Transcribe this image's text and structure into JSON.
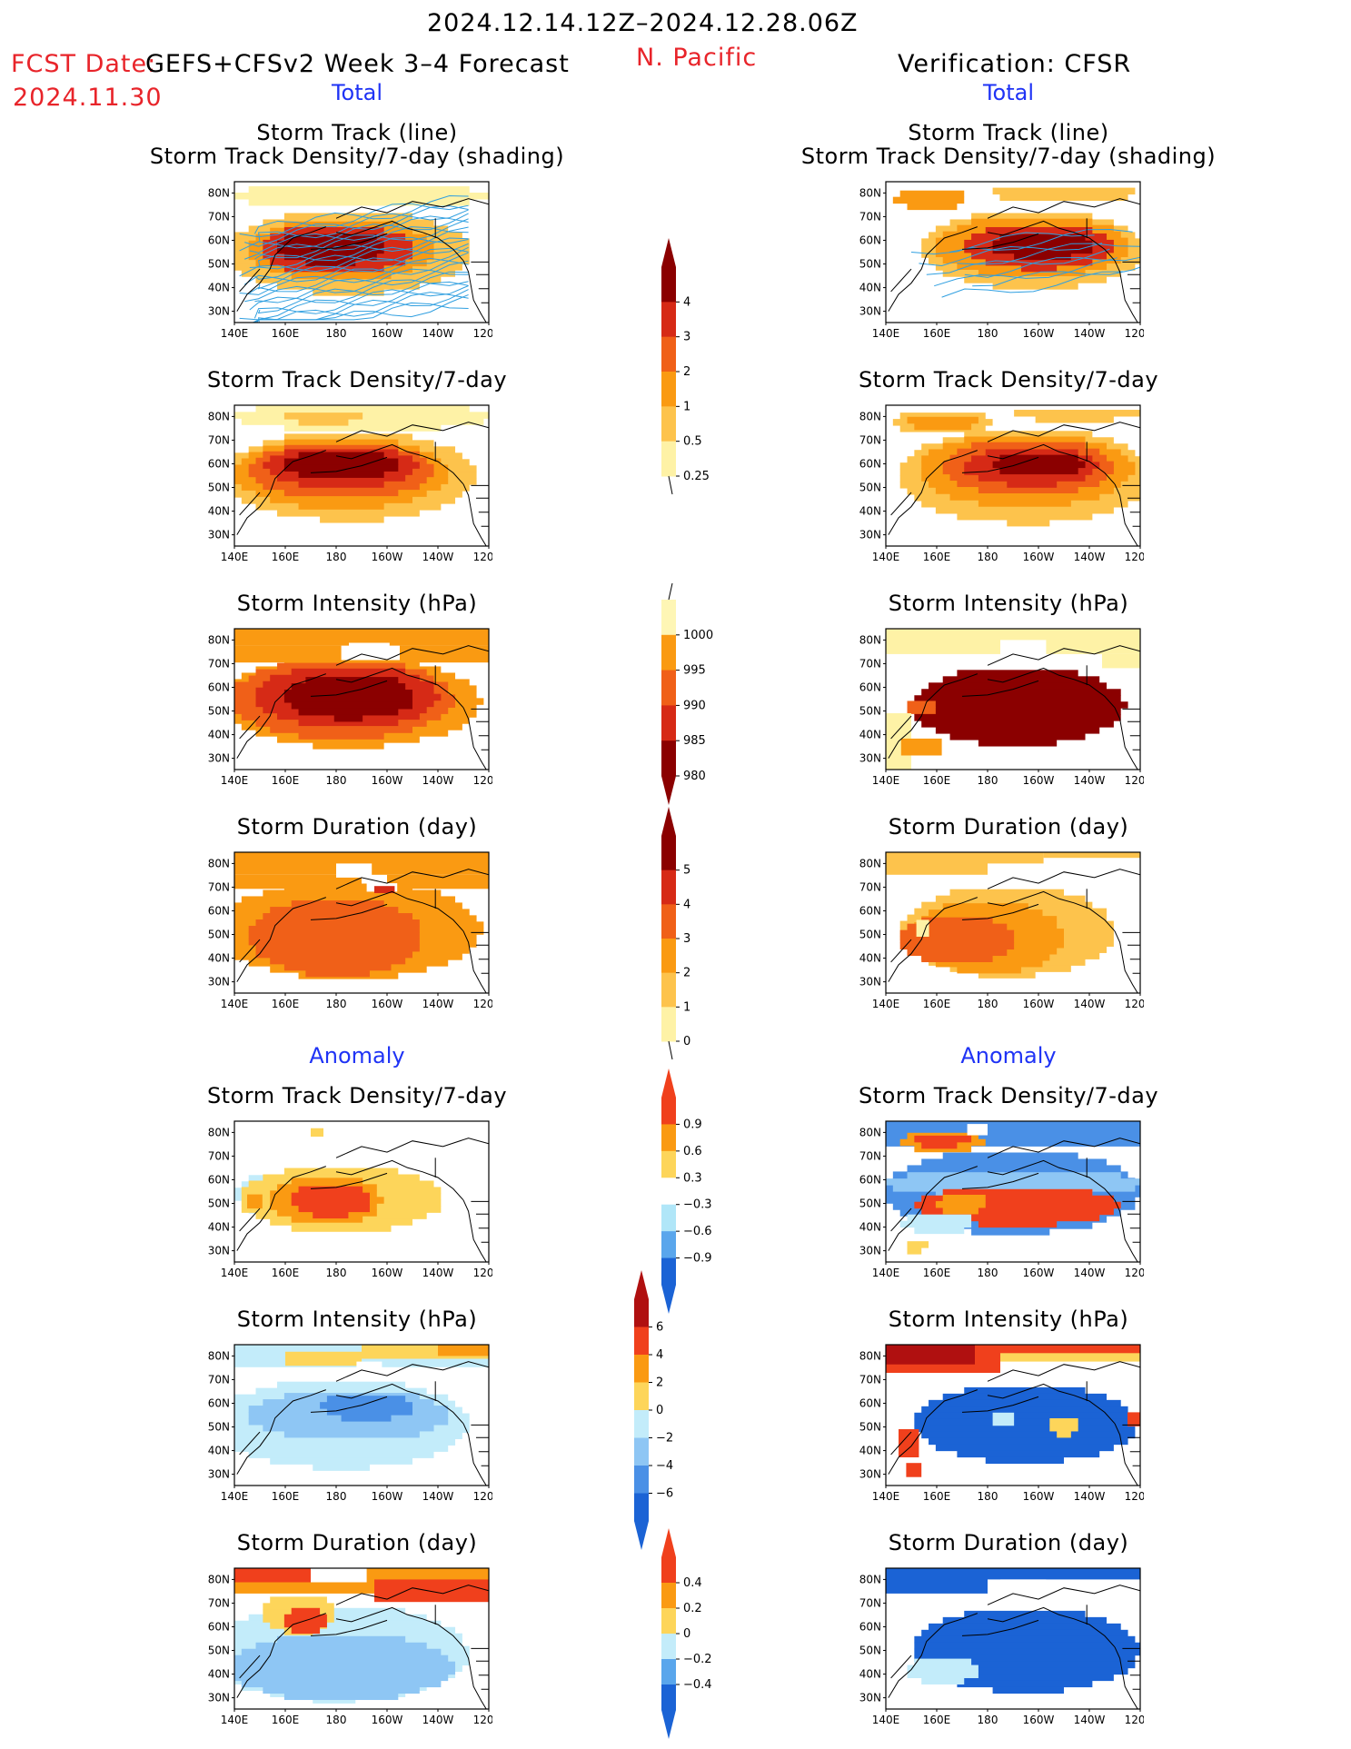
{
  "header": {
    "date_range": "2024.12.14.12Z–2024.12.28.06Z",
    "fcst_prefix": "FCST Date:",
    "fcst_model": "GEFS+CFSv2 Week 3–4 Forecast",
    "fcst_date": "2024.11.30",
    "region": "N. Pacific",
    "verification": "Verification: CFSR"
  },
  "sections": {
    "total": "Total",
    "anomaly": "Anomaly"
  },
  "panel_titles": {
    "track_line": "Storm Track (line)",
    "track_shading": "Storm Track Density/7-day (shading)",
    "density": "Storm Track Density/7-day",
    "intensity": "Storm Intensity (hPa)",
    "duration": "Storm Duration (day)"
  },
  "axes": {
    "lat_labels": [
      "80N",
      "70N",
      "60N",
      "50N",
      "40N",
      "30N"
    ],
    "lon_labels": [
      "140E",
      "160E",
      "180",
      "160W",
      "140W",
      "120W"
    ]
  },
  "colorbars": {
    "density_total": {
      "labels": [
        "4",
        "3",
        "2",
        "1",
        "0.5",
        "0.25"
      ],
      "colors": [
        "#8b0000",
        "#d62a16",
        "#f06018",
        "#fa9a12",
        "#fdc34c",
        "#fef2a6"
      ]
    },
    "intensity_total": {
      "labels": [
        "1000",
        "995",
        "990",
        "985",
        "980"
      ],
      "colors": [
        "#fef6b5",
        "#fa9a12",
        "#f06018",
        "#d62a16",
        "#8b0000"
      ]
    },
    "duration_total": {
      "labels": [
        "5",
        "4",
        "3",
        "2",
        "1",
        "0"
      ],
      "colors": [
        "#8b0000",
        "#d62a16",
        "#f06018",
        "#fa9a12",
        "#fdc34c",
        "#fef2a6"
      ]
    },
    "density_anom": {
      "labels": [
        "0.9",
        "0.6",
        "0.3",
        "−0.3",
        "−0.6",
        "−0.9"
      ],
      "colors": [
        "#f0401c",
        "#fa9a12",
        "#fdd55a",
        "#ffffff",
        "#b0e6f8",
        "#5aa6ec",
        "#1b63d5"
      ]
    },
    "intensity_anom": {
      "labels": [
        "6",
        "4",
        "2",
        "0",
        "−2",
        "−4",
        "−6"
      ],
      "colors": [
        "#b01010",
        "#f0401c",
        "#fa9a12",
        "#fdd55a",
        "#c3ecfa",
        "#8ec6f4",
        "#4a90e6",
        "#1b63d5"
      ]
    },
    "duration_anom": {
      "labels": [
        "0.4",
        "0.2",
        "0",
        "−0.2",
        "−0.4"
      ],
      "colors": [
        "#f0401c",
        "#fa9a12",
        "#fdd55a",
        "#c3ecfa",
        "#5aa6ec",
        "#1b63d5"
      ]
    }
  },
  "colors": {
    "red_text": "#e8242a",
    "blue_text": "#1f33f5",
    "track_line": "#2f9fe0"
  }
}
